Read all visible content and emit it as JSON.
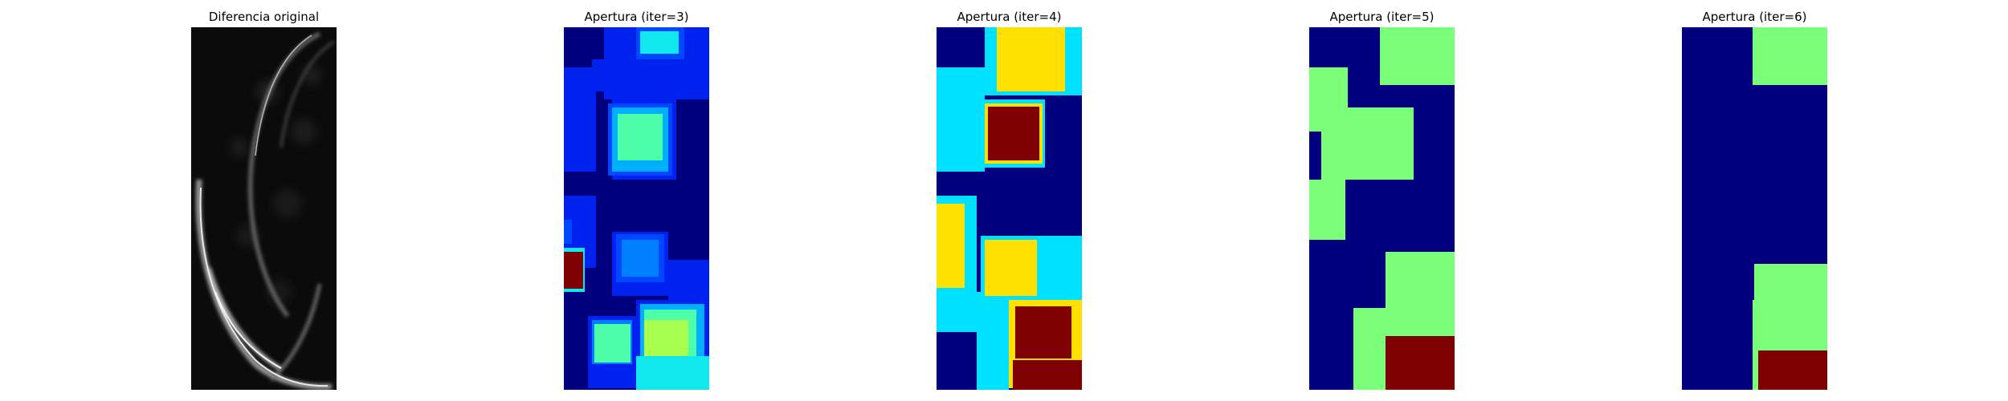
{
  "figure": {
    "panels": [
      {
        "title": "Diferencia original",
        "image": "grayscale-difference-image"
      },
      {
        "title": "Apertura (iter=3)",
        "image": "jet-colormap-label-map"
      },
      {
        "title": "Apertura (iter=4)",
        "image": "jet-colormap-label-map"
      },
      {
        "title": "Apertura (iter=5)",
        "image": "jet-colormap-label-map"
      },
      {
        "title": "Apertura (iter=6)",
        "image": "jet-colormap-label-map"
      }
    ]
  },
  "colors": {
    "background": "#ffffff",
    "jet_navy": "#00007f",
    "jet_blue": "#0022ee",
    "jet_azure": "#0080ff",
    "jet_cyan": "#00e0ff",
    "jet_light_cyan": "#10e8ee",
    "jet_mint": "#4dffa8",
    "jet_green": "#7bff7b",
    "jet_yellow_green": "#a8ff4d",
    "jet_yellow": "#ffe000",
    "jet_dark_red": "#7f0000"
  }
}
